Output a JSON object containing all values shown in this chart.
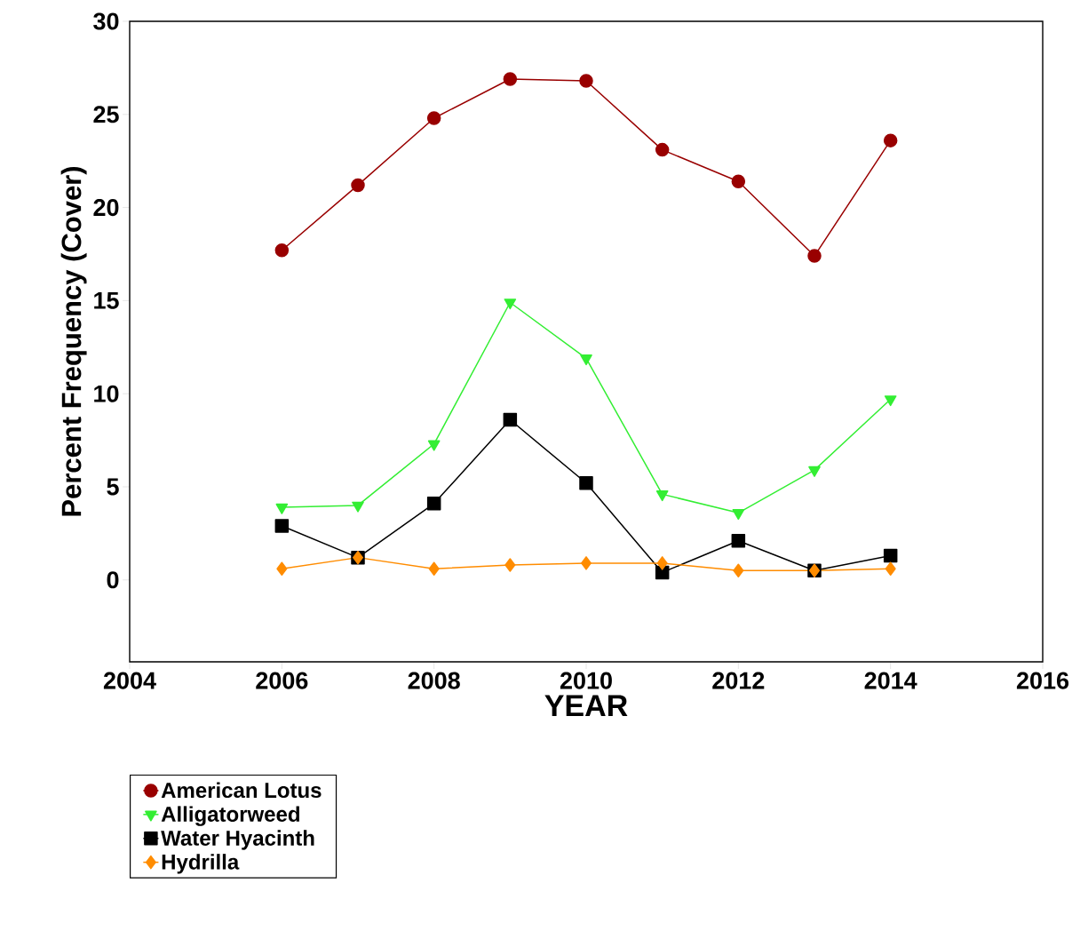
{
  "chart_data": {
    "type": "line",
    "xlabel": "YEAR",
    "ylabel": "Percent Frequency (Cover)",
    "x": [
      2006,
      2007,
      2008,
      2009,
      2010,
      2011,
      2012,
      2013,
      2014
    ],
    "series": [
      {
        "name": "American Lotus",
        "color": "#990000",
        "marker": "circle",
        "values": [
          17.7,
          21.2,
          24.8,
          26.9,
          26.8,
          23.1,
          21.4,
          17.4,
          23.6
        ]
      },
      {
        "name": "Alligatorweed",
        "color": "#33ee33",
        "marker": "triangle",
        "values": [
          3.9,
          4.0,
          7.3,
          14.9,
          11.9,
          4.6,
          3.6,
          5.9,
          9.7
        ]
      },
      {
        "name": "Water Hyacinth",
        "color": "#000000",
        "marker": "square",
        "values": [
          2.9,
          1.2,
          4.1,
          8.6,
          5.2,
          0.4,
          2.1,
          0.5,
          1.3
        ]
      },
      {
        "name": "Hydrilla",
        "color": "#ff8c00",
        "marker": "diamond",
        "values": [
          0.6,
          1.2,
          0.6,
          0.8,
          0.9,
          0.9,
          0.5,
          0.5,
          0.6
        ]
      }
    ],
    "xlim": [
      2004,
      2016
    ],
    "ylim": [
      -4.4,
      30
    ],
    "xticks": [
      2004,
      2006,
      2008,
      2010,
      2012,
      2014,
      2016
    ],
    "yticks": [
      0,
      5,
      10,
      15,
      20,
      25,
      30
    ],
    "grid": false,
    "legend": "bottom left",
    "line_style": "solid"
  }
}
